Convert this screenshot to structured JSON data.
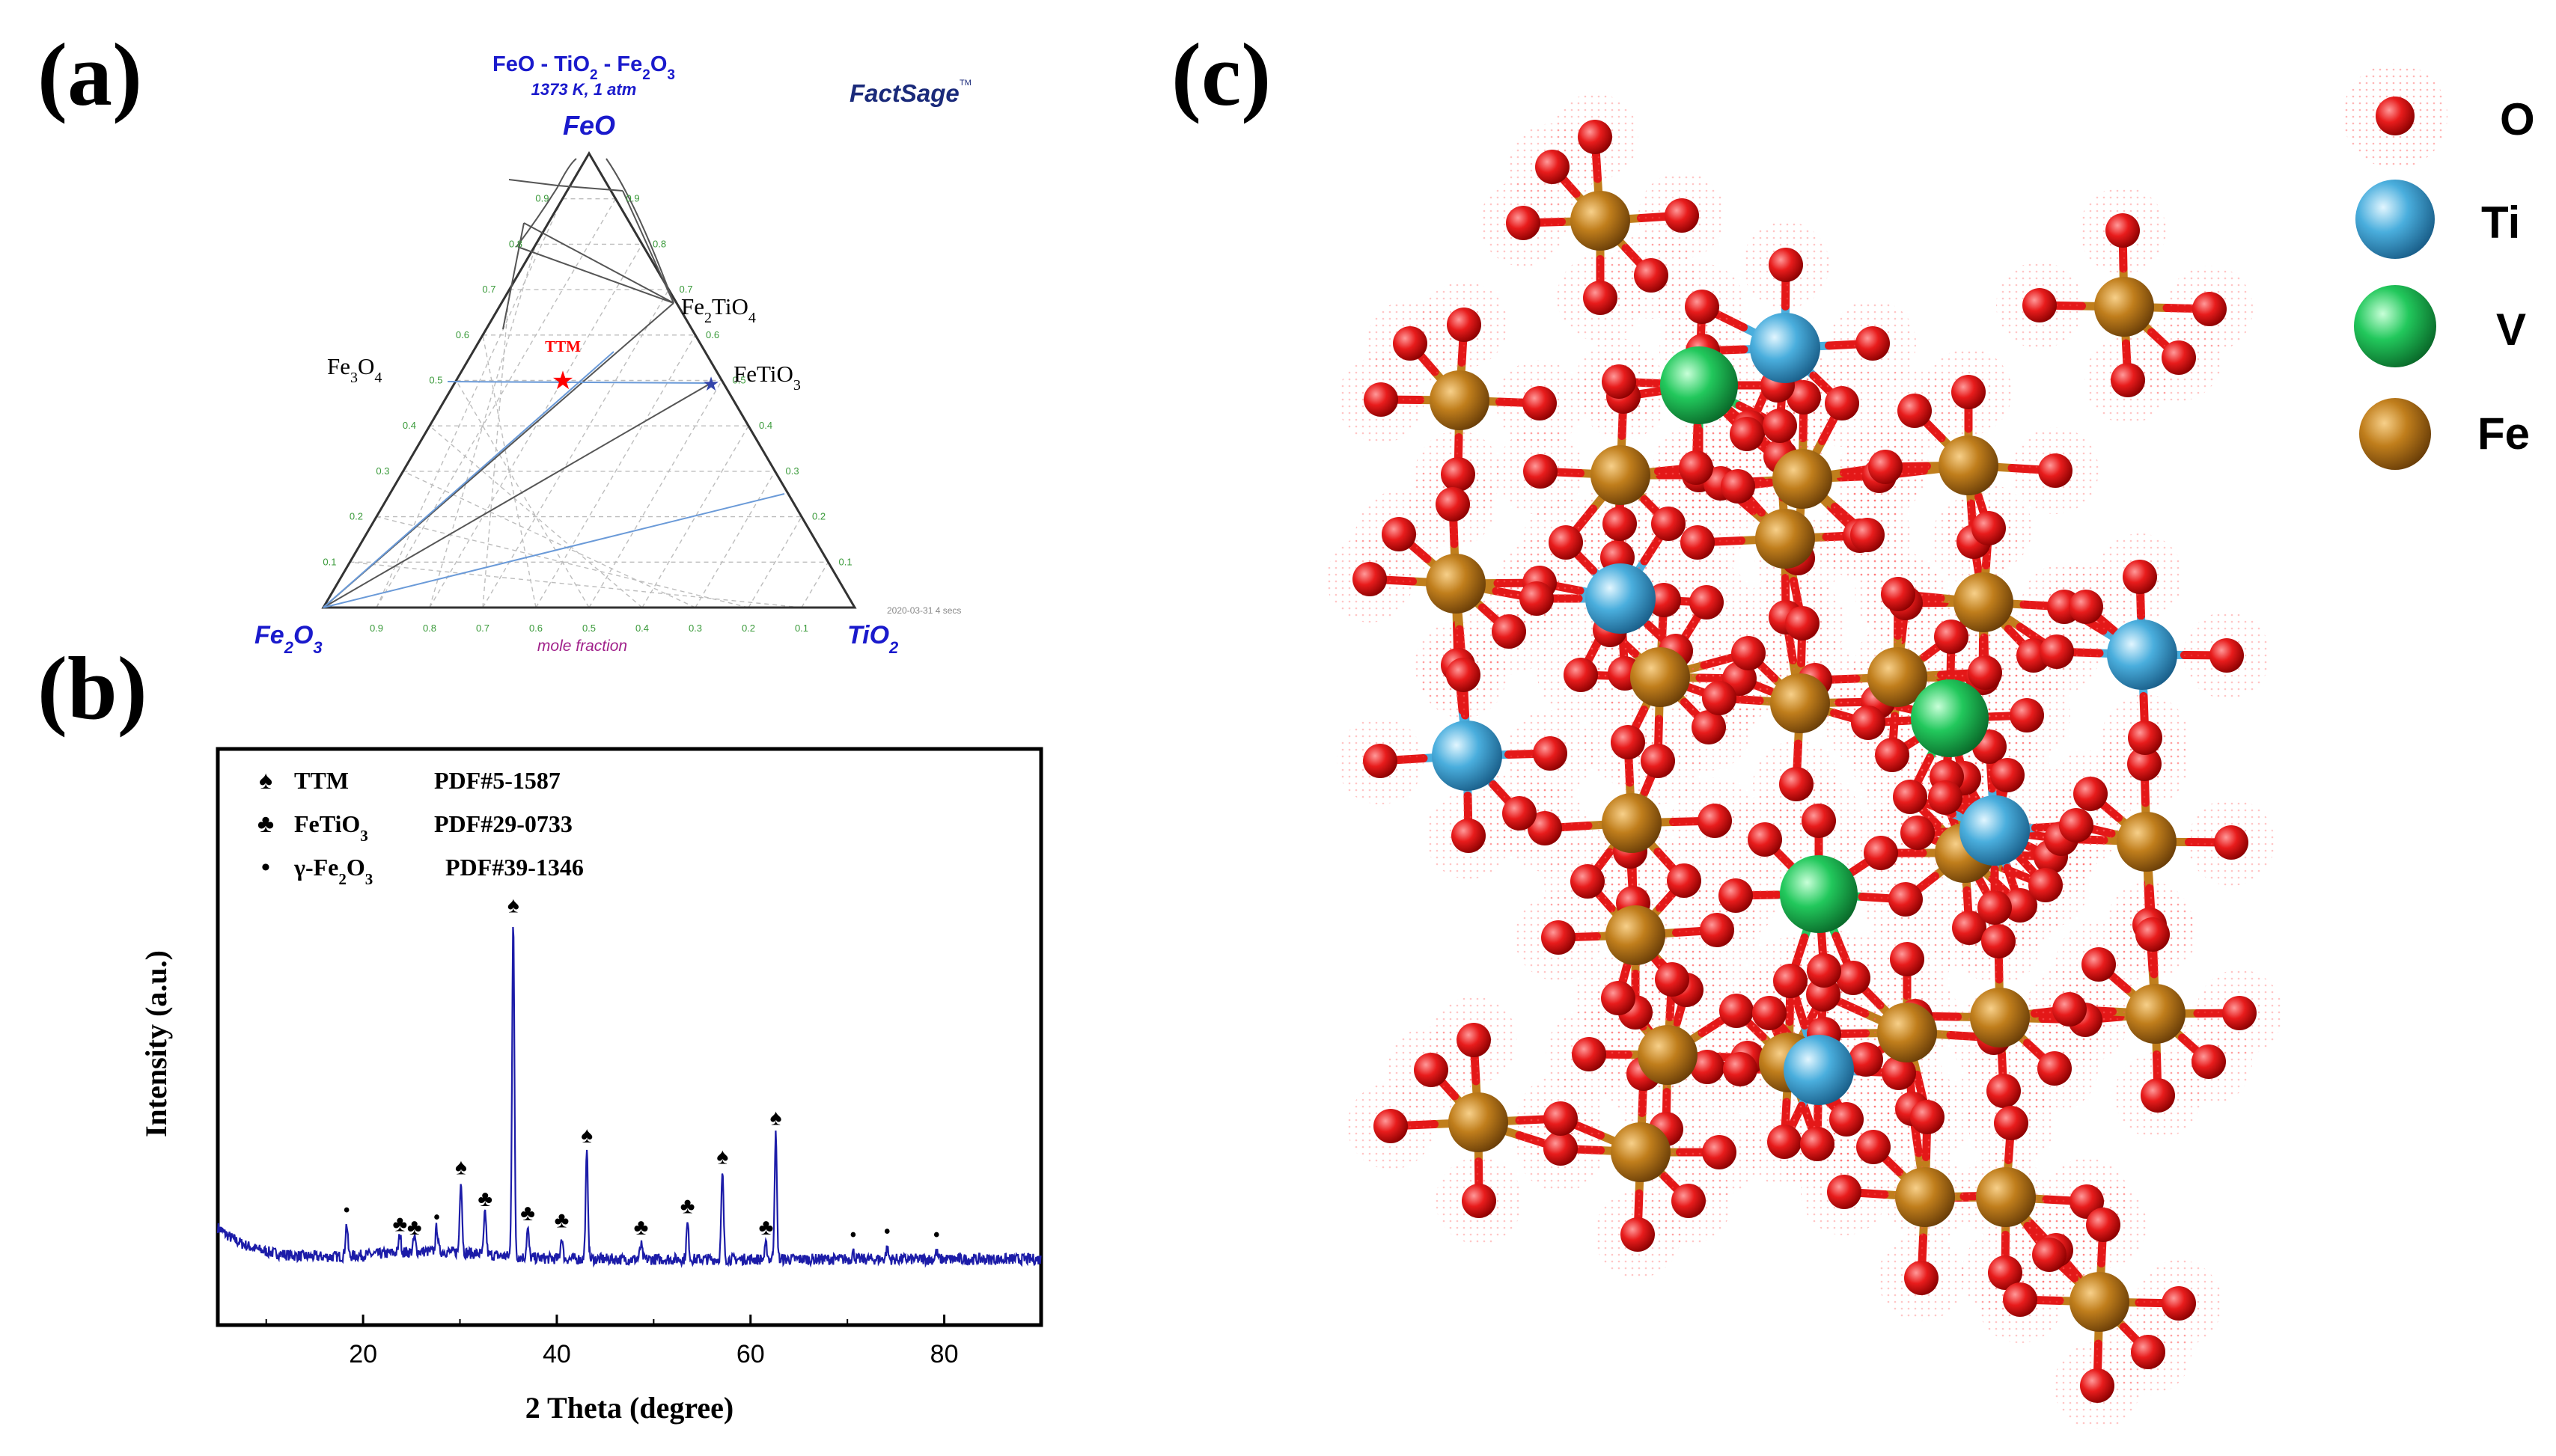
{
  "panel_labels": {
    "a": "(a)",
    "b": "(b)",
    "c": "(c)"
  },
  "ternary": {
    "title_part1": "FeO - TiO",
    "title_sub1": "2",
    "title_part2": " - Fe",
    "title_sub2": "2",
    "title_part3": "O",
    "title_sub3": "3",
    "conditions": "1373 K, 1 atm",
    "logo": "FactSage",
    "logo_tm": "TM",
    "apex_top": "FeO",
    "apex_left_main": "Fe",
    "apex_left_sub1": "2",
    "apex_left_o": "O",
    "apex_left_sub2": "3",
    "apex_right_main": "TiO",
    "apex_right_sub": "2",
    "phase_fe2tio4_a": "Fe",
    "phase_fe2tio4_s1": "2",
    "phase_fe2tio4_b": "TiO",
    "phase_fe2tio4_s2": "4",
    "phase_fe3o4_a": "Fe",
    "phase_fe3o4_s1": "3",
    "phase_fe3o4_b": "O",
    "phase_fe3o4_s2": "4",
    "phase_fetio3_a": "FeTiO",
    "phase_fetio3_s": "3",
    "ttm_label": "TTM",
    "axis_label": "mole fraction",
    "timestamp": "2020-03-31  4 secs",
    "bottom_ticks": [
      "0.9",
      "0.8",
      "0.7",
      "0.6",
      "0.5",
      "0.4",
      "0.3",
      "0.2",
      "0.1"
    ],
    "left_ticks": [
      "0.9",
      "0.8",
      "0.7",
      "0.6",
      "0.5",
      "0.4",
      "0.3",
      "0.2",
      "0.1"
    ],
    "right_ticks": [
      "0.1",
      "0.2",
      "0.3",
      "0.4",
      "0.5",
      "0.6",
      "0.7",
      "0.8",
      "0.9"
    ],
    "colors": {
      "title": "#1a1acc",
      "ttm": "#ff0000",
      "grid": "#bdbdbd",
      "tick": "#3a9a3a",
      "axis_label": "#a0208a",
      "tie": "#6a9ad8"
    }
  },
  "chart_data": {
    "type": "line",
    "xlabel": "2 Theta (degree)",
    "ylabel": "Intensity (a.u.)",
    "xlim": [
      5,
      90
    ],
    "ylim": [
      0,
      100
    ],
    "xticks": [
      20,
      40,
      60,
      80
    ],
    "grid": false,
    "legend_position": "top-left",
    "line_color": "#1c1ca8",
    "legend": [
      {
        "symbol": "♠",
        "phase_main": "TTM",
        "phase_sub": "",
        "phase_tail": "",
        "pdf": "PDF#5-1587"
      },
      {
        "symbol": "♣",
        "phase_main": "FeTiO",
        "phase_sub": "3",
        "phase_tail": "",
        "pdf": "PDF#29-0733"
      },
      {
        "symbol": "•",
        "phase_main": "γ-Fe",
        "phase_sub": "2",
        "phase_tail": "O",
        "phase_sub2": "3",
        "pdf": "PDF#39-1346"
      }
    ],
    "peaks": [
      {
        "x": 18.3,
        "y": 9,
        "marker": "•"
      },
      {
        "x": 23.8,
        "y": 5,
        "marker": "♣"
      },
      {
        "x": 25.3,
        "y": 4,
        "marker": "♣"
      },
      {
        "x": 27.6,
        "y": 7,
        "marker": "•"
      },
      {
        "x": 30.1,
        "y": 21,
        "marker": "♠"
      },
      {
        "x": 32.6,
        "y": 12,
        "marker": "♣"
      },
      {
        "x": 35.5,
        "y": 95,
        "marker": "♠"
      },
      {
        "x": 37.0,
        "y": 8,
        "marker": "♣"
      },
      {
        "x": 40.5,
        "y": 6,
        "marker": "♣"
      },
      {
        "x": 43.1,
        "y": 30,
        "marker": "♠"
      },
      {
        "x": 48.7,
        "y": 4,
        "marker": "♣"
      },
      {
        "x": 53.5,
        "y": 10,
        "marker": "♣"
      },
      {
        "x": 57.1,
        "y": 24,
        "marker": "♠"
      },
      {
        "x": 61.6,
        "y": 4,
        "marker": "♣"
      },
      {
        "x": 62.6,
        "y": 35,
        "marker": "♠"
      },
      {
        "x": 70.6,
        "y": 2,
        "marker": "•"
      },
      {
        "x": 74.1,
        "y": 3,
        "marker": "•"
      },
      {
        "x": 79.2,
        "y": 2,
        "marker": "•"
      }
    ]
  },
  "structure_legend": [
    {
      "label": "O",
      "color": "#e01a1a"
    },
    {
      "label": "Ti",
      "color": "#4aa9d8"
    },
    {
      "label": "V",
      "color": "#1fc45a"
    },
    {
      "label": "Fe",
      "color": "#b9791a"
    }
  ]
}
